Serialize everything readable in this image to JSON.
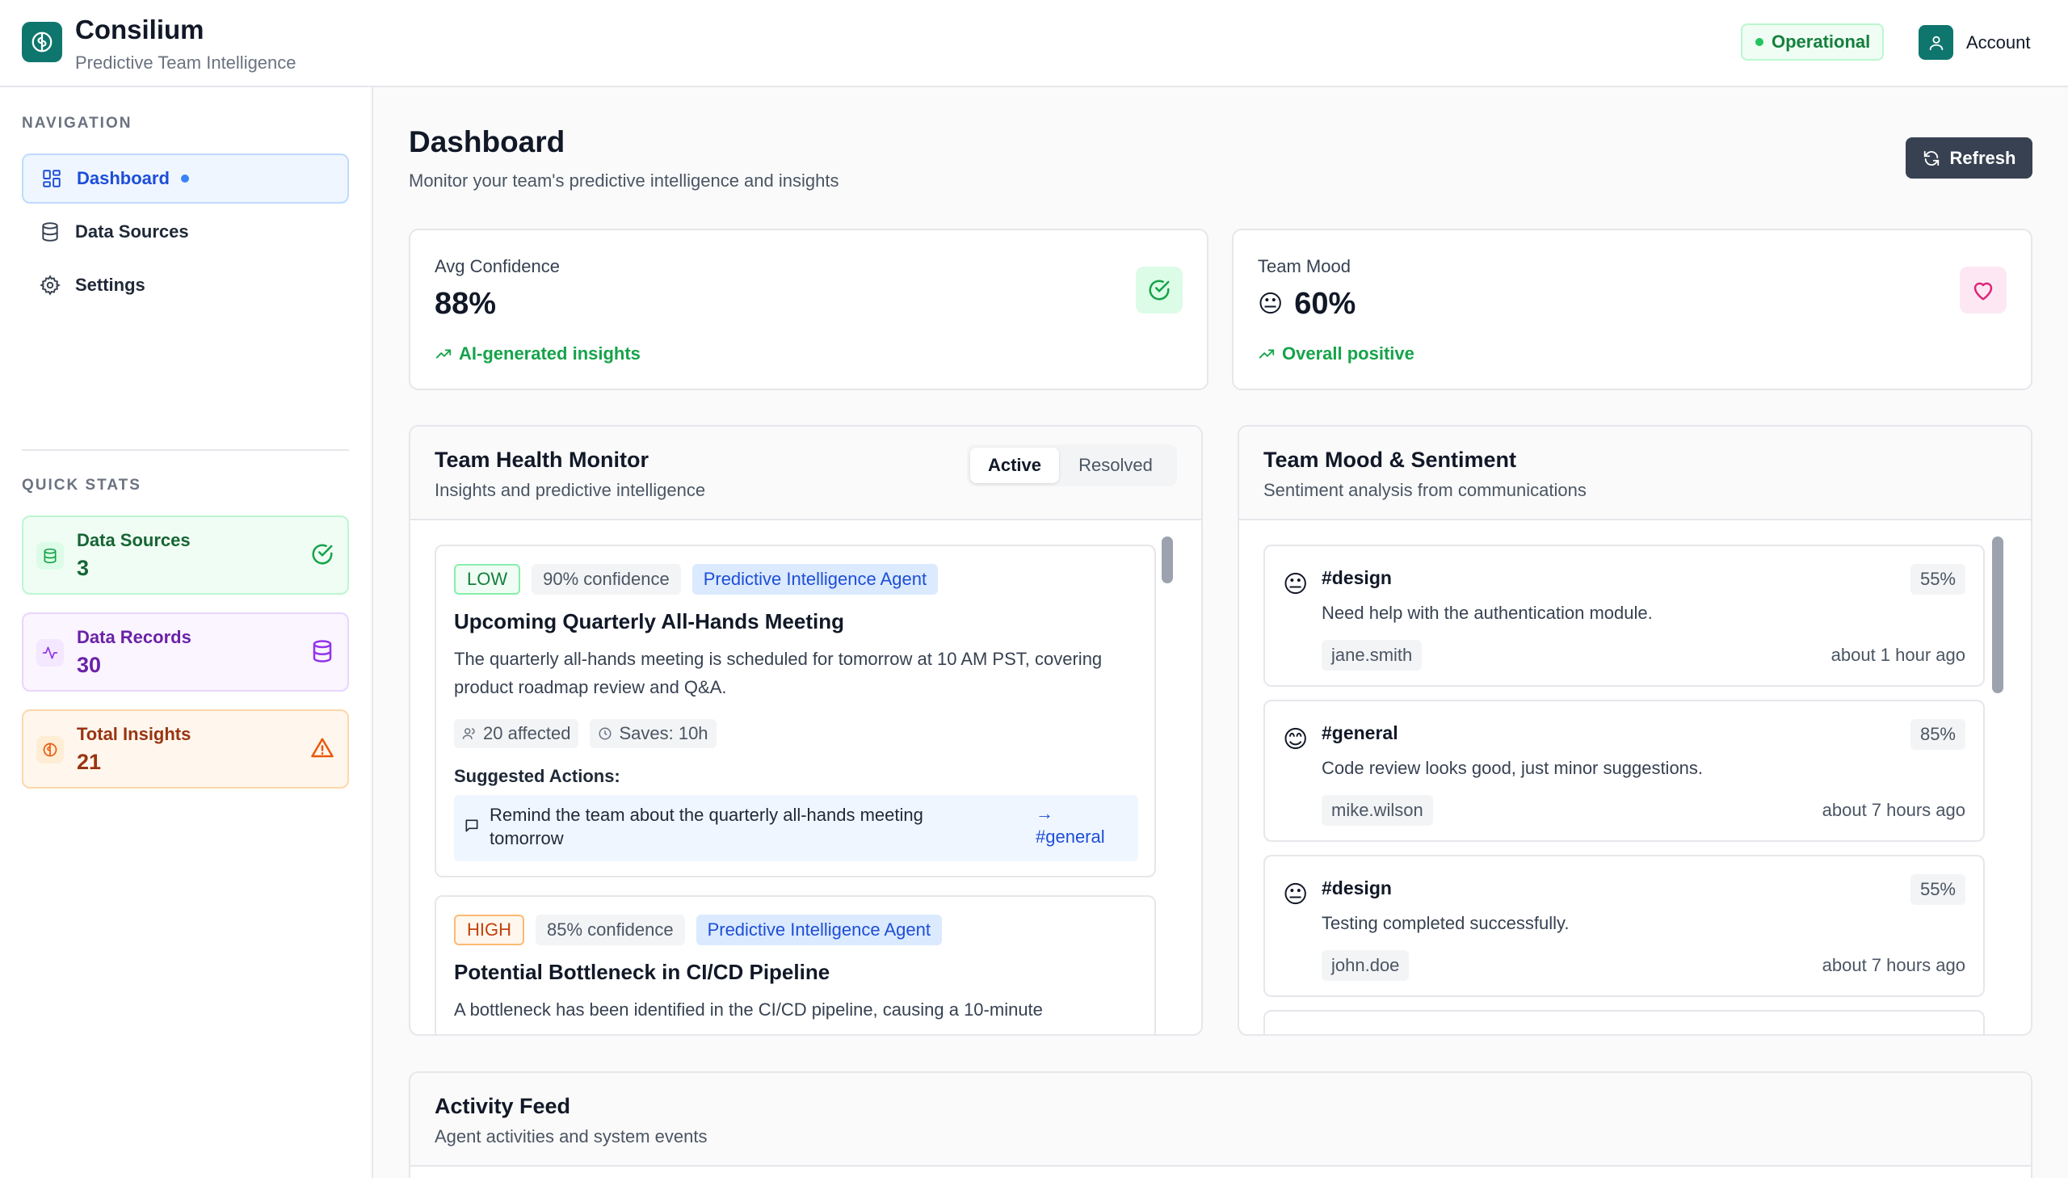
{
  "app": {
    "title": "Consilium",
    "subtitle": "Predictive Team Intelligence",
    "status": "Operational",
    "account_label": "Account"
  },
  "sidebar": {
    "nav_heading": "NAVIGATION",
    "nav_items": [
      {
        "label": "Dashboard",
        "icon": "dashboard-icon",
        "active": true
      },
      {
        "label": "Data Sources",
        "icon": "database-icon",
        "active": false
      },
      {
        "label": "Settings",
        "icon": "gear-icon",
        "active": false
      }
    ],
    "stats_heading": "QUICK STATS",
    "stats": [
      {
        "label": "Data Sources",
        "value": "3",
        "color": "#16a34a",
        "bg": "#f0fdf4",
        "border": "#bbf7d0",
        "text": "#166534"
      },
      {
        "label": "Data Records",
        "value": "30",
        "color": "#9333ea",
        "bg": "#faf5ff",
        "border": "#e9d5ff",
        "text": "#6b21a8"
      },
      {
        "label": "Total Insights",
        "value": "21",
        "color": "#ea580c",
        "bg": "#fff7ed",
        "border": "#fed7aa",
        "text": "#9a3412"
      }
    ]
  },
  "main": {
    "title": "Dashboard",
    "subtitle": "Monitor your team's predictive intelligence and insights",
    "refresh_label": "Refresh"
  },
  "kpis": [
    {
      "label": "Avg Confidence",
      "value": "88%",
      "trend": "AI-generated insights",
      "icon": "check-circle-icon",
      "emoji": ""
    },
    {
      "label": "Team Mood",
      "value": "60%",
      "trend": "Overall positive",
      "icon": "heart-icon",
      "emoji": "😐"
    }
  ],
  "health": {
    "title": "Team Health Monitor",
    "subtitle": "Insights and predictive intelligence",
    "tabs": [
      {
        "label": "Active",
        "selected": true
      },
      {
        "label": "Resolved",
        "selected": false
      }
    ],
    "insights": [
      {
        "severity": "LOW",
        "confidence": "90% confidence",
        "agent": "Predictive Intelligence Agent",
        "title": "Upcoming Quarterly All-Hands Meeting",
        "desc": "The quarterly all-hands meeting is scheduled for tomorrow at 10 AM PST, covering product roadmap review and Q&A.",
        "affected": "20 affected",
        "saves": "Saves: 10h",
        "actions_label": "Suggested Actions:",
        "action_text": "Remind the team about the quarterly all-hands meeting tomorrow",
        "action_arrow": "→",
        "action_channel": "#general"
      },
      {
        "severity": "HIGH",
        "confidence": "85% confidence",
        "agent": "Predictive Intelligence Agent",
        "title": "Potential Bottleneck in CI/CD Pipeline",
        "desc": "A bottleneck has been identified in the CI/CD pipeline, causing a 10-minute"
      }
    ]
  },
  "mood": {
    "title": "Team Mood & Sentiment",
    "subtitle": "Sentiment analysis from communications",
    "items": [
      {
        "emoji": "😐",
        "channel": "#design",
        "pct": "55%",
        "message": "Need help with the authentication module.",
        "user": "jane.smith",
        "time": "about 1 hour ago"
      },
      {
        "emoji": "😊",
        "channel": "#general",
        "pct": "85%",
        "message": "Code review looks good, just minor suggestions.",
        "user": "mike.wilson",
        "time": "about 7 hours ago"
      },
      {
        "emoji": "😐",
        "channel": "#design",
        "pct": "55%",
        "message": "Testing completed successfully.",
        "user": "john.doe",
        "time": "about 7 hours ago"
      }
    ]
  },
  "feed": {
    "title": "Activity Feed",
    "subtitle": "Agent activities and system events"
  },
  "colors": {
    "brand": "#0f766e",
    "accent_blue": "#1d4ed8",
    "success": "#16a34a",
    "dark_button": "#374151"
  }
}
